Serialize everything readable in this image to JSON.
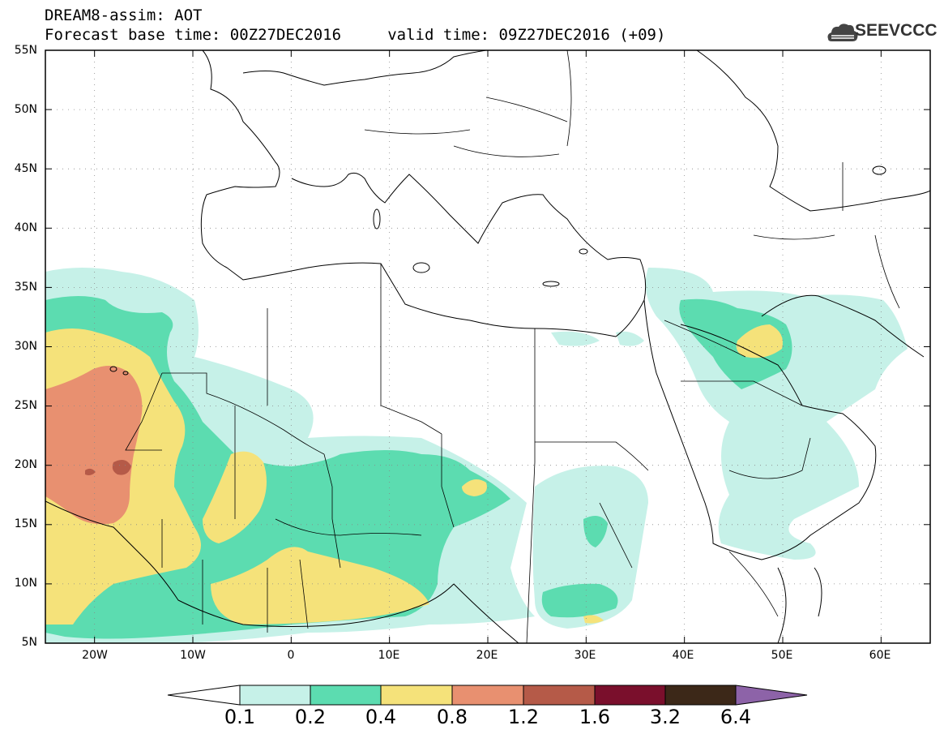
{
  "title_line1": "DREAM8-assim: AOT",
  "title_line2": "Forecast base time: 00Z27DEC2016     valid time: 09Z27DEC2016 (+09)",
  "logo_text": "SEEVCCC",
  "lat_labels": [
    "55N",
    "50N",
    "45N",
    "40N",
    "35N",
    "30N",
    "25N",
    "20N",
    "15N",
    "10N",
    "5N"
  ],
  "lon_labels": [
    "20W",
    "10W",
    "0",
    "10E",
    "20E",
    "30E",
    "40E",
    "50E",
    "60E"
  ],
  "colorbar": {
    "labels": [
      "0.1",
      "0.2",
      "0.4",
      "0.8",
      "1.2",
      "1.6",
      "3.2",
      "6.4"
    ],
    "colors": [
      "#ffffff",
      "#c6f1e8",
      "#5cdcb0",
      "#f5e27a",
      "#e89070",
      "#b55a48",
      "#7a0f2c",
      "#3c2818",
      "#8d63a8"
    ]
  },
  "map_extent": {
    "lon": [
      -25,
      65
    ],
    "lat": [
      5,
      55
    ]
  },
  "level_colors": {
    "l1": "#c6f1e8",
    "l2": "#5cdcb0",
    "l3": "#f5e27a",
    "l4": "#e89070",
    "l5": "#b55a48"
  }
}
